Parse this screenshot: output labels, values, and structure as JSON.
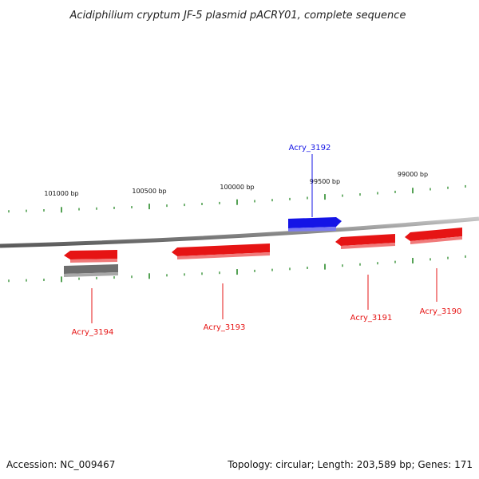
{
  "title": "Acidiphilium cryptum JF-5 plasmid pACRY01, complete sequence",
  "footer": {
    "accession": "Accession: NC_009467",
    "summary": "Topology: circular; Length: 203,589 bp; Genes: 171"
  },
  "ruler": {
    "labels": [
      "101000 bp",
      "100500 bp",
      "100000 bp",
      "99500 bp",
      "99000 bp"
    ],
    "tick_color": "#2a8a2a"
  },
  "backbone_color": "#8c8c8c",
  "genes": [
    {
      "name": "Acry_3192",
      "strand": "forward",
      "color": "#1414e6"
    },
    {
      "name": "Acry_3194",
      "strand": "reverse",
      "color": "#e61414"
    },
    {
      "name": "Acry_3193",
      "strand": "reverse",
      "color": "#e61414"
    },
    {
      "name": "Acry_3191",
      "strand": "reverse",
      "color": "#e61414"
    },
    {
      "name": "Acry_3190",
      "strand": "reverse",
      "color": "#e61414"
    }
  ],
  "other_feature": {
    "color": "#6e6e6e"
  }
}
